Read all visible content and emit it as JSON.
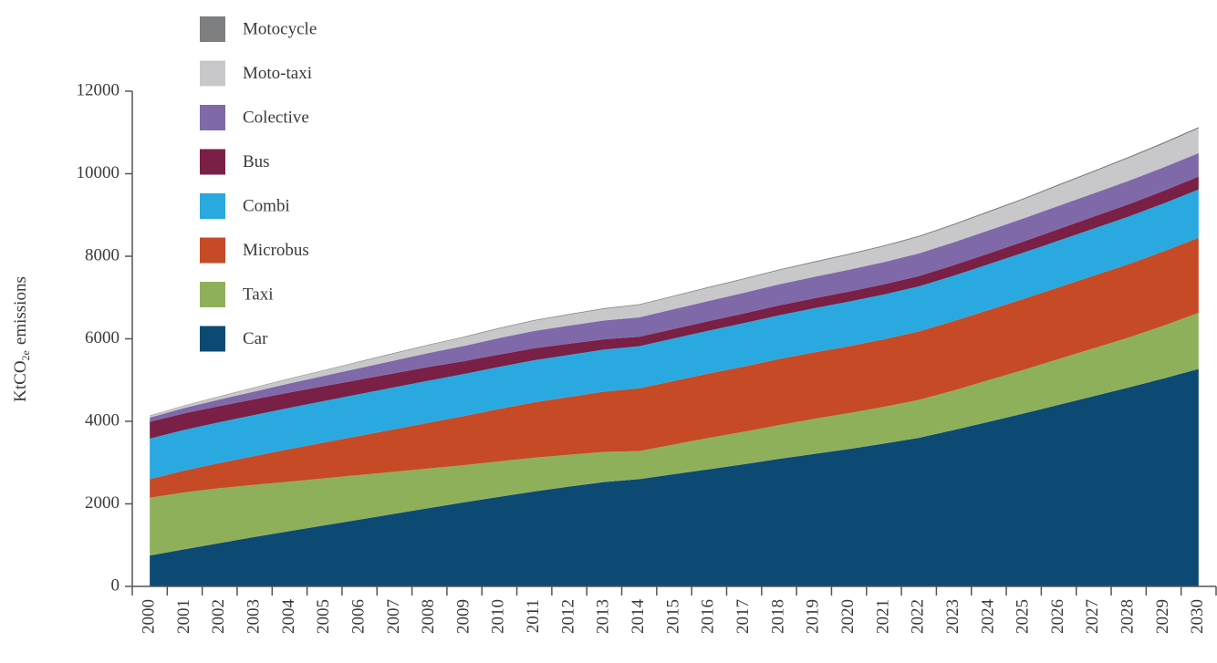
{
  "chart_data": {
    "type": "stacked_area",
    "y_label": [
      "KtCO",
      "2e",
      "emissions"
    ],
    "categories": [
      "2000",
      "2001",
      "2002",
      "2003",
      "2004",
      "2005",
      "2006",
      "2007",
      "2008",
      "2009",
      "2010",
      "2011",
      "2012",
      "2013",
      "2014",
      "2015",
      "2016",
      "2017",
      "2018",
      "2019",
      "2020",
      "2021",
      "2022",
      "2023",
      "2024",
      "2025",
      "2026",
      "2027",
      "2028",
      "2029",
      "2030"
    ],
    "series": [
      {
        "name": "Car",
        "color": "#0d4a73",
        "values": [
          750,
          900,
          1050,
          1200,
          1340,
          1480,
          1620,
          1760,
          1900,
          2040,
          2170,
          2300,
          2420,
          2530,
          2600,
          2720,
          2840,
          2960,
          3090,
          3210,
          3330,
          3460,
          3600,
          3790,
          3990,
          4190,
          4400,
          4610,
          4820,
          5040,
          5270
        ]
      },
      {
        "name": "Taxi",
        "color": "#8fb05a",
        "values": [
          1400,
          1380,
          1330,
          1260,
          1200,
          1140,
          1080,
          1020,
          960,
          900,
          860,
          820,
          770,
          730,
          680,
          720,
          760,
          790,
          820,
          850,
          870,
          890,
          920,
          960,
          1010,
          1060,
          1110,
          1160,
          1210,
          1280,
          1360
        ]
      },
      {
        "name": "Microbus",
        "color": "#c64a26",
        "values": [
          450,
          530,
          610,
          700,
          790,
          870,
          950,
          1030,
          1110,
          1190,
          1270,
          1340,
          1400,
          1460,
          1520,
          1540,
          1560,
          1580,
          1600,
          1610,
          1620,
          1640,
          1660,
          1680,
          1700,
          1720,
          1740,
          1760,
          1780,
          1800,
          1820
        ]
      },
      {
        "name": "Combi",
        "color": "#2aa9e0",
        "values": [
          980,
          985,
          990,
          995,
          1000,
          1005,
          1010,
          1015,
          1020,
          1020,
          1020,
          1020,
          1020,
          1020,
          1020,
          1030,
          1040,
          1050,
          1060,
          1070,
          1080,
          1085,
          1090,
          1100,
          1110,
          1120,
          1130,
          1140,
          1150,
          1160,
          1170
        ]
      },
      {
        "name": "Bus",
        "color": "#7a1f45",
        "values": [
          410,
          400,
          390,
          380,
          370,
          360,
          350,
          340,
          330,
          310,
          300,
          290,
          270,
          250,
          230,
          230,
          230,
          235,
          240,
          240,
          245,
          245,
          250,
          255,
          260,
          270,
          280,
          290,
          300,
          305,
          310
        ]
      },
      {
        "name": "Colective",
        "color": "#7f69a8",
        "values": [
          100,
          130,
          160,
          190,
          220,
          250,
          280,
          310,
          340,
          370,
          400,
          420,
          440,
          455,
          470,
          480,
          490,
          500,
          510,
          520,
          530,
          540,
          550,
          555,
          560,
          560,
          565,
          565,
          570,
          570,
          570
        ]
      },
      {
        "name": "Moto-taxi",
        "color": "#c8c8ca",
        "values": [
          40,
          55,
          70,
          90,
          110,
          130,
          150,
          170,
          190,
          210,
          230,
          250,
          265,
          280,
          300,
          310,
          320,
          330,
          340,
          350,
          365,
          380,
          400,
          420,
          440,
          460,
          490,
          520,
          550,
          575,
          600
        ]
      },
      {
        "name": "Motocycle",
        "color": "#7d7e80",
        "values": [
          10,
          10,
          10,
          10,
          12,
          12,
          12,
          14,
          14,
          14,
          16,
          16,
          16,
          18,
          18,
          18,
          20,
          20,
          20,
          22,
          22,
          22,
          24,
          24,
          26,
          26,
          28,
          28,
          30,
          30,
          30
        ]
      }
    ],
    "ylim": [
      0,
      12000
    ],
    "yticks": [
      0,
      2000,
      4000,
      6000,
      8000,
      10000,
      12000
    ],
    "legend": "upper left"
  }
}
